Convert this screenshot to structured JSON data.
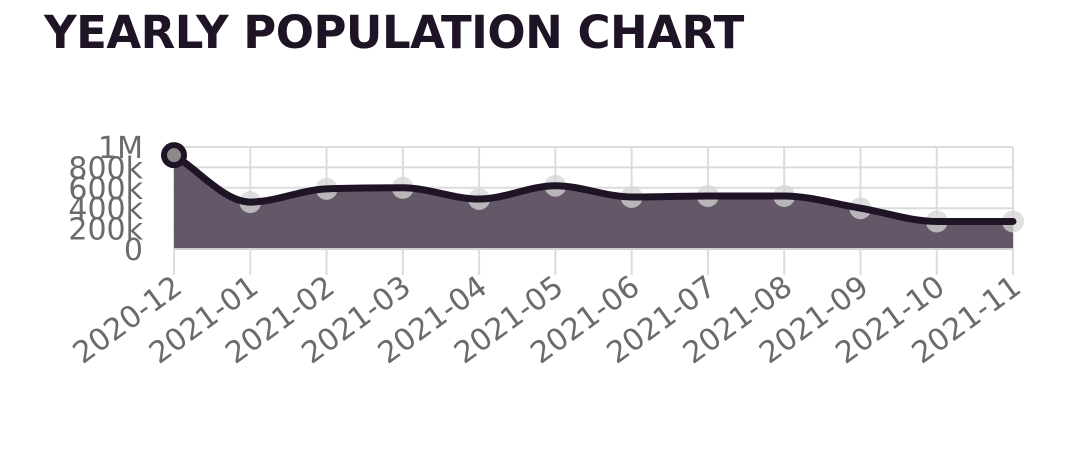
{
  "chart_data": {
    "type": "area",
    "title": "YEARLY POPULATION CHART",
    "x": [
      "2020-12",
      "2021-01",
      "2021-02",
      "2021-03",
      "2021-04",
      "2021-05",
      "2021-06",
      "2021-07",
      "2021-08",
      "2021-09",
      "2021-10",
      "2021-11"
    ],
    "series": [
      {
        "values": [
          920000,
          460000,
          590000,
          600000,
          490000,
          620000,
          510000,
          520000,
          520000,
          400000,
          270000,
          270000
        ]
      }
    ],
    "ylim": [
      0,
      1000000
    ],
    "y_ticks": [
      0,
      200000,
      400000,
      600000,
      800000,
      1000000
    ],
    "y_tick_labels": [
      "0",
      "200k",
      "400k",
      "600k",
      "800k",
      "1M"
    ],
    "grid": true,
    "colors": {
      "line": "#1f1426",
      "fill": "#5c4e5f",
      "grid": "#dcdcdc",
      "point": "#d6d6d6"
    }
  }
}
